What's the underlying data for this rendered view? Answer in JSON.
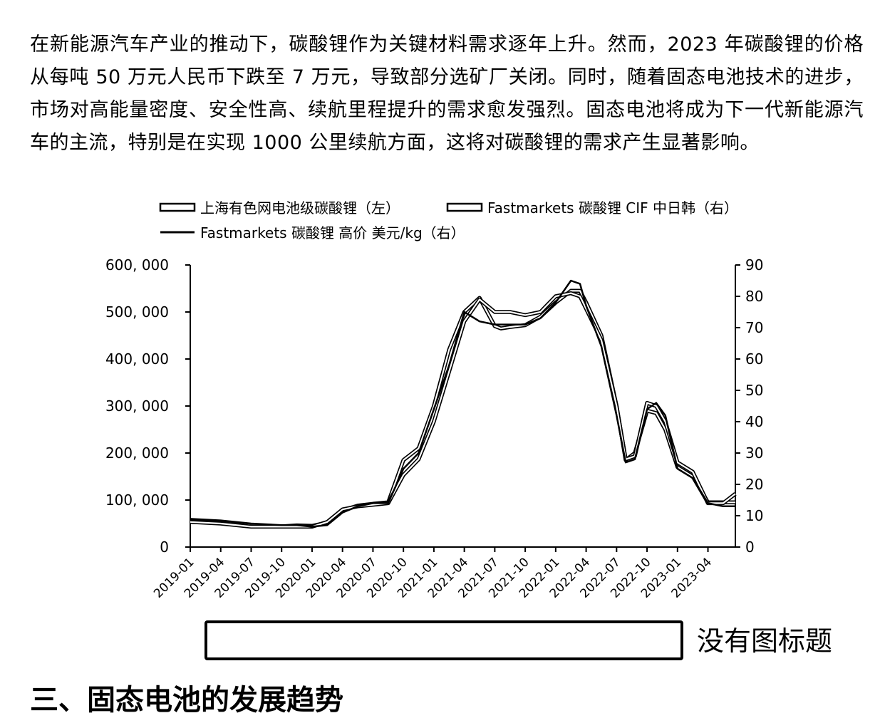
{
  "document": {
    "paragraph": "在新能源汽车产业的推动下，碳酸锂作为关键材料需求逐年上升。然而，2023 年碳酸锂的价格从每吨 50 万元人民币下跌至 7 万元，导致部分选矿厂关闭。同时，随着固态电池技术的进步，市场对高能量密度、安全性高、续航里程提升的需求愈发强烈。固态电池将成为下一代新能源汽车的主流，特别是在实现 1000 公里续航方面，这将对碳酸锂的需求产生显著影响。",
    "caption_note": "没有图标题",
    "section_heading": "三、固态电池的发展趋势"
  },
  "chart_data": {
    "type": "line",
    "legend": [
      "上海有色网电池级碳酸锂（左）",
      "Fastmarkets 碳酸锂 CIF 中日韩（右）",
      "Fastmarkets 碳酸锂 高价 美元/kg（右）"
    ],
    "legend_placement": "top-center",
    "x_tick_labels": [
      "2019-01",
      "2019-04",
      "2019-07",
      "2019-10",
      "2020-01",
      "2020-04",
      "2020-07",
      "2020-10",
      "2021-01",
      "2021-04",
      "2021-07",
      "2021-10",
      "2022-01",
      "2022-04",
      "2022-07",
      "2022-10",
      "2023-01",
      "2023-04"
    ],
    "y_left": {
      "ticks": [
        "0",
        "100, 000",
        "200, 000",
        "300, 000",
        "400, 000",
        "500, 000",
        "600, 000"
      ],
      "range": [
        0,
        600000
      ]
    },
    "y_right": {
      "ticks": [
        "0",
        "10",
        "20",
        "30",
        "40",
        "50",
        "60",
        "70",
        "80",
        "90"
      ],
      "range": [
        0,
        90
      ]
    },
    "x_range": [
      0,
      17.9
    ],
    "grid": false,
    "series": [
      {
        "name": "上海有色网电池级碳酸锂（左）",
        "axis": "left",
        "x": [
          0,
          1,
          2,
          3,
          3.5,
          4,
          4.5,
          5,
          5.5,
          6,
          6.5,
          7,
          7.5,
          8,
          8.5,
          9,
          9.5,
          10,
          10.2,
          10.5,
          11,
          11.5,
          12,
          12.5,
          12.8,
          13,
          13.5,
          14,
          14.3,
          14.6,
          15,
          15.3,
          15.6,
          16,
          16.5,
          17,
          17.5,
          17.9
        ],
        "y": [
          55000,
          52000,
          46000,
          44000,
          46000,
          45000,
          52000,
          78000,
          88000,
          92000,
          95000,
          185000,
          210000,
          300000,
          420000,
          500000,
          530000,
          470000,
          465000,
          468000,
          472000,
          490000,
          520000,
          545000,
          545000,
          520000,
          450000,
          300000,
          185000,
          200000,
          290000,
          285000,
          250000,
          170000,
          150000,
          95000,
          95000,
          95000
        ]
      },
      {
        "name": "Fastmarkets 碳酸锂 CIF 中日韩（右）",
        "axis": "right",
        "x": [
          0,
          1,
          2,
          3,
          3.5,
          4,
          4.5,
          5,
          5.5,
          6,
          6.5,
          7,
          7.5,
          8,
          8.5,
          9,
          9.5,
          10,
          10.2,
          10.5,
          11,
          11.5,
          12,
          12.5,
          12.8,
          13,
          13.5,
          14,
          14.3,
          14.6,
          15,
          15.3,
          15.6,
          16,
          16.5,
          17,
          17.5,
          17.9
        ],
        "y": [
          8,
          7.5,
          6.5,
          6.5,
          6.5,
          6.5,
          8,
          12,
          13,
          13.5,
          14,
          23,
          28,
          40,
          56,
          72,
          79,
          75,
          75,
          75,
          74,
          75,
          80,
          81,
          80,
          76,
          66,
          45,
          28,
          29,
          46,
          45,
          40,
          27,
          24,
          14,
          14,
          17
        ]
      },
      {
        "name": "Fastmarkets 碳酸锂 高价 美元/kg（右）",
        "axis": "right",
        "x": [
          0,
          1,
          2,
          3,
          3.5,
          4,
          4.5,
          5,
          5.5,
          6,
          6.5,
          7,
          7.5,
          8,
          8.5,
          9,
          9.5,
          10,
          10.2,
          10.5,
          11,
          11.5,
          12,
          12.5,
          12.8,
          13,
          13.5,
          14,
          14.3,
          14.6,
          15,
          15.3,
          15.6,
          16,
          16.5,
          17,
          17.5,
          17.9
        ],
        "y": [
          9,
          8.5,
          7.5,
          7,
          7,
          6.5,
          7,
          11,
          13,
          14,
          14,
          25,
          30,
          44,
          58,
          75,
          72,
          71,
          71,
          71,
          71,
          73,
          78,
          85,
          84,
          77,
          64,
          42,
          27,
          28,
          44,
          46,
          42,
          25,
          22,
          14,
          13,
          13
        ]
      }
    ]
  }
}
